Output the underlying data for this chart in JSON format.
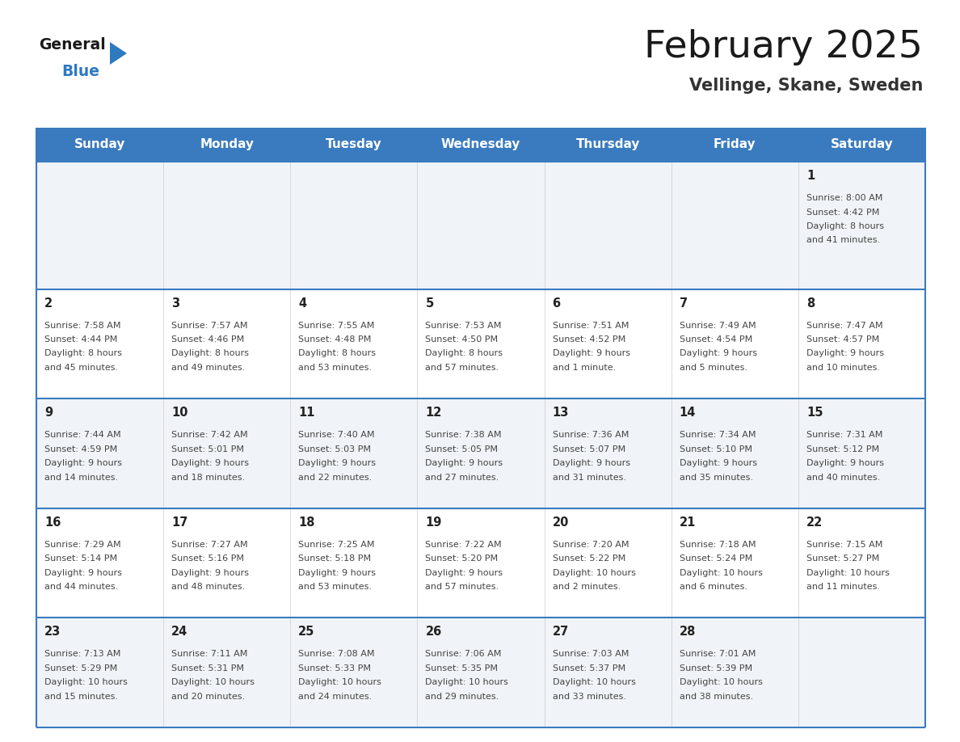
{
  "title": "February 2025",
  "subtitle": "Vellinge, Skane, Sweden",
  "header_color": "#3a7bbf",
  "header_text_color": "#ffffff",
  "day_names": [
    "Sunday",
    "Monday",
    "Tuesday",
    "Wednesday",
    "Thursday",
    "Friday",
    "Saturday"
  ],
  "bg_color": "#ffffff",
  "cell_bg_week1": "#f0f4f8",
  "cell_bg_week2": "#ffffff",
  "cell_bg_week3": "#f0f4f8",
  "cell_bg_week4": "#ffffff",
  "cell_bg_week5": "#f0f4f8",
  "border_color": "#3a7bbf",
  "date_color": "#222222",
  "info_color": "#444444",
  "logo_general_color": "#222222",
  "logo_blue_color": "#2e7abf",
  "logo_triangle_color": "#2e7abf",
  "calendar_data": [
    [
      null,
      null,
      null,
      null,
      null,
      null,
      {
        "day": "1",
        "sunrise": "8:00 AM",
        "sunset": "4:42 PM",
        "daylight_line1": "Daylight: 8 hours",
        "daylight_line2": "and 41 minutes."
      }
    ],
    [
      {
        "day": "2",
        "sunrise": "7:58 AM",
        "sunset": "4:44 PM",
        "daylight_line1": "Daylight: 8 hours",
        "daylight_line2": "and 45 minutes."
      },
      {
        "day": "3",
        "sunrise": "7:57 AM",
        "sunset": "4:46 PM",
        "daylight_line1": "Daylight: 8 hours",
        "daylight_line2": "and 49 minutes."
      },
      {
        "day": "4",
        "sunrise": "7:55 AM",
        "sunset": "4:48 PM",
        "daylight_line1": "Daylight: 8 hours",
        "daylight_line2": "and 53 minutes."
      },
      {
        "day": "5",
        "sunrise": "7:53 AM",
        "sunset": "4:50 PM",
        "daylight_line1": "Daylight: 8 hours",
        "daylight_line2": "and 57 minutes."
      },
      {
        "day": "6",
        "sunrise": "7:51 AM",
        "sunset": "4:52 PM",
        "daylight_line1": "Daylight: 9 hours",
        "daylight_line2": "and 1 minute."
      },
      {
        "day": "7",
        "sunrise": "7:49 AM",
        "sunset": "4:54 PM",
        "daylight_line1": "Daylight: 9 hours",
        "daylight_line2": "and 5 minutes."
      },
      {
        "day": "8",
        "sunrise": "7:47 AM",
        "sunset": "4:57 PM",
        "daylight_line1": "Daylight: 9 hours",
        "daylight_line2": "and 10 minutes."
      }
    ],
    [
      {
        "day": "9",
        "sunrise": "7:44 AM",
        "sunset": "4:59 PM",
        "daylight_line1": "Daylight: 9 hours",
        "daylight_line2": "and 14 minutes."
      },
      {
        "day": "10",
        "sunrise": "7:42 AM",
        "sunset": "5:01 PM",
        "daylight_line1": "Daylight: 9 hours",
        "daylight_line2": "and 18 minutes."
      },
      {
        "day": "11",
        "sunrise": "7:40 AM",
        "sunset": "5:03 PM",
        "daylight_line1": "Daylight: 9 hours",
        "daylight_line2": "and 22 minutes."
      },
      {
        "day": "12",
        "sunrise": "7:38 AM",
        "sunset": "5:05 PM",
        "daylight_line1": "Daylight: 9 hours",
        "daylight_line2": "and 27 minutes."
      },
      {
        "day": "13",
        "sunrise": "7:36 AM",
        "sunset": "5:07 PM",
        "daylight_line1": "Daylight: 9 hours",
        "daylight_line2": "and 31 minutes."
      },
      {
        "day": "14",
        "sunrise": "7:34 AM",
        "sunset": "5:10 PM",
        "daylight_line1": "Daylight: 9 hours",
        "daylight_line2": "and 35 minutes."
      },
      {
        "day": "15",
        "sunrise": "7:31 AM",
        "sunset": "5:12 PM",
        "daylight_line1": "Daylight: 9 hours",
        "daylight_line2": "and 40 minutes."
      }
    ],
    [
      {
        "day": "16",
        "sunrise": "7:29 AM",
        "sunset": "5:14 PM",
        "daylight_line1": "Daylight: 9 hours",
        "daylight_line2": "and 44 minutes."
      },
      {
        "day": "17",
        "sunrise": "7:27 AM",
        "sunset": "5:16 PM",
        "daylight_line1": "Daylight: 9 hours",
        "daylight_line2": "and 48 minutes."
      },
      {
        "day": "18",
        "sunrise": "7:25 AM",
        "sunset": "5:18 PM",
        "daylight_line1": "Daylight: 9 hours",
        "daylight_line2": "and 53 minutes."
      },
      {
        "day": "19",
        "sunrise": "7:22 AM",
        "sunset": "5:20 PM",
        "daylight_line1": "Daylight: 9 hours",
        "daylight_line2": "and 57 minutes."
      },
      {
        "day": "20",
        "sunrise": "7:20 AM",
        "sunset": "5:22 PM",
        "daylight_line1": "Daylight: 10 hours",
        "daylight_line2": "and 2 minutes."
      },
      {
        "day": "21",
        "sunrise": "7:18 AM",
        "sunset": "5:24 PM",
        "daylight_line1": "Daylight: 10 hours",
        "daylight_line2": "and 6 minutes."
      },
      {
        "day": "22",
        "sunrise": "7:15 AM",
        "sunset": "5:27 PM",
        "daylight_line1": "Daylight: 10 hours",
        "daylight_line2": "and 11 minutes."
      }
    ],
    [
      {
        "day": "23",
        "sunrise": "7:13 AM",
        "sunset": "5:29 PM",
        "daylight_line1": "Daylight: 10 hours",
        "daylight_line2": "and 15 minutes."
      },
      {
        "day": "24",
        "sunrise": "7:11 AM",
        "sunset": "5:31 PM",
        "daylight_line1": "Daylight: 10 hours",
        "daylight_line2": "and 20 minutes."
      },
      {
        "day": "25",
        "sunrise": "7:08 AM",
        "sunset": "5:33 PM",
        "daylight_line1": "Daylight: 10 hours",
        "daylight_line2": "and 24 minutes."
      },
      {
        "day": "26",
        "sunrise": "7:06 AM",
        "sunset": "5:35 PM",
        "daylight_line1": "Daylight: 10 hours",
        "daylight_line2": "and 29 minutes."
      },
      {
        "day": "27",
        "sunrise": "7:03 AM",
        "sunset": "5:37 PM",
        "daylight_line1": "Daylight: 10 hours",
        "daylight_line2": "and 33 minutes."
      },
      {
        "day": "28",
        "sunrise": "7:01 AM",
        "sunset": "5:39 PM",
        "daylight_line1": "Daylight: 10 hours",
        "daylight_line2": "and 38 minutes."
      },
      null
    ]
  ]
}
